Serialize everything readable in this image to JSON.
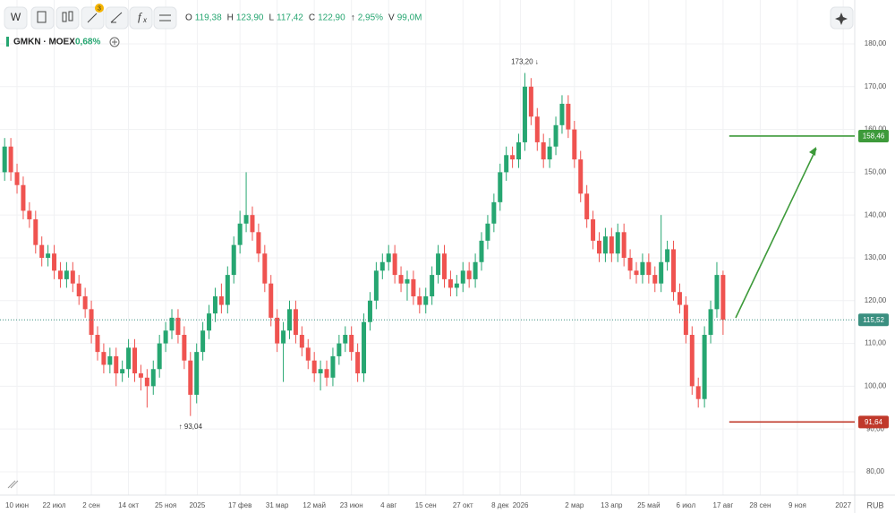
{
  "chart_data": {
    "type": "candlestick",
    "symbol": "GMKN · MOEX",
    "change": "0,68%",
    "toolbar": {
      "w": "W",
      "badge": "3",
      "fx": "f",
      "fx_sub": "x"
    },
    "ohlc_header": [
      {
        "key": "O",
        "text": "119,38"
      },
      {
        "key": "H",
        "text": "123,90"
      },
      {
        "key": "L",
        "text": "117,42"
      },
      {
        "key": "C",
        "text": "122,90"
      },
      {
        "key": "↑",
        "text": "2,95%"
      },
      {
        "key": "V",
        "text": "99,0M"
      }
    ],
    "currency": "RUB",
    "up_color": "#26a671",
    "down_color": "#ef5350",
    "xlim": [
      -2.75,
      135.26
    ],
    "ylim": [
      75.6,
      190.25
    ],
    "yticks": [
      {
        "value": 80,
        "label": "80,00"
      },
      {
        "value": 90,
        "label": "90,00"
      },
      {
        "value": 100,
        "label": "100,00"
      },
      {
        "value": 110,
        "label": "110,00"
      },
      {
        "value": 120,
        "label": "120,00"
      },
      {
        "value": 130,
        "label": "130,00"
      },
      {
        "value": 140,
        "label": "140,00"
      },
      {
        "value": 150,
        "label": "150,00"
      },
      {
        "value": 160,
        "label": "160,00"
      },
      {
        "value": 170,
        "label": "170,00"
      },
      {
        "value": 180,
        "label": "180,00"
      }
    ],
    "xticks": [
      {
        "value": 0,
        "label": "10 июн"
      },
      {
        "value": 6,
        "label": "22 июл"
      },
      {
        "value": 12,
        "label": "2 сен"
      },
      {
        "value": 18,
        "label": "14 окт"
      },
      {
        "value": 24,
        "label": "25 ноя"
      },
      {
        "value": 29.1,
        "label": "2025"
      },
      {
        "value": 36,
        "label": "17 фев"
      },
      {
        "value": 42,
        "label": "31 мар"
      },
      {
        "value": 48,
        "label": "12 май"
      },
      {
        "value": 54,
        "label": "23 июн"
      },
      {
        "value": 60,
        "label": "4 авг"
      },
      {
        "value": 66,
        "label": "15 сен"
      },
      {
        "value": 72,
        "label": "27 окт"
      },
      {
        "value": 78,
        "label": "8 дек"
      },
      {
        "value": 81.3,
        "label": "2026"
      },
      {
        "value": 90,
        "label": "2 мар"
      },
      {
        "value": 96,
        "label": "13 апр"
      },
      {
        "value": 102,
        "label": "25 май"
      },
      {
        "value": 108,
        "label": "6 июл"
      },
      {
        "value": 114,
        "label": "17 авг"
      },
      {
        "value": 120,
        "label": "28 сен"
      },
      {
        "value": 126,
        "label": "9 ноя"
      },
      {
        "value": 133.4,
        "label": "2027"
      }
    ],
    "x": [
      -2,
      -1,
      0,
      1,
      2,
      3,
      4,
      5,
      6,
      7,
      8,
      9,
      10,
      11,
      12,
      13,
      14,
      15,
      16,
      17,
      18,
      19,
      20,
      21,
      22,
      23,
      24,
      25,
      26,
      27,
      28,
      29,
      30,
      31,
      32,
      33,
      34,
      35,
      36,
      37,
      38,
      39,
      40,
      41,
      42,
      43,
      44,
      45,
      46,
      47,
      48,
      49,
      50,
      51,
      52,
      53,
      54,
      55,
      56,
      57,
      58,
      59,
      60,
      61,
      62,
      63,
      64,
      65,
      66,
      67,
      68,
      69,
      70,
      71,
      72,
      73,
      74,
      75,
      76,
      77,
      78,
      79,
      80,
      81,
      82,
      83,
      84,
      85,
      86,
      87,
      88,
      89,
      90,
      91,
      92,
      93,
      94,
      95,
      96,
      97,
      98,
      99,
      100,
      101,
      102,
      103,
      104,
      105,
      106,
      107,
      108,
      109,
      110,
      111,
      112,
      113,
      114
    ],
    "open": [
      150,
      156,
      150,
      147,
      141,
      139,
      133,
      130,
      131,
      127,
      125,
      127,
      124,
      121,
      118,
      112,
      108,
      105,
      107,
      103,
      104,
      109,
      103,
      102,
      100,
      104,
      110,
      113,
      116,
      112,
      106,
      98,
      108,
      113,
      117,
      121,
      119,
      126,
      133,
      138,
      140,
      136,
      131,
      124,
      116,
      110,
      113,
      118,
      112,
      109,
      106,
      103,
      104,
      102,
      107,
      110,
      112,
      108,
      103,
      115,
      120,
      127,
      129,
      131,
      126,
      124,
      125,
      121,
      119,
      121,
      126,
      131,
      125,
      123,
      124,
      127,
      125,
      129,
      134,
      138,
      143,
      150,
      154,
      153,
      157,
      170,
      163,
      157,
      153,
      156,
      161,
      166,
      160,
      153,
      145,
      139,
      134,
      131,
      135,
      131,
      136,
      130,
      127,
      126,
      129,
      126,
      124,
      129,
      132,
      122,
      119,
      112,
      100,
      97,
      112,
      118,
      126
    ],
    "high": [
      158,
      158,
      152,
      149,
      143,
      141,
      135,
      133,
      133,
      129,
      129,
      129,
      126,
      123,
      120,
      114,
      110,
      109,
      109,
      106,
      111,
      111,
      105,
      104,
      106,
      112,
      115,
      118,
      118,
      114,
      108,
      110,
      115,
      119,
      123,
      124,
      128,
      135,
      141,
      150,
      142,
      138,
      133,
      126,
      118,
      115,
      120,
      120,
      114,
      111,
      108,
      106,
      106,
      109,
      112,
      114,
      114,
      110,
      117,
      122,
      129,
      131,
      133,
      133,
      128,
      127,
      127,
      123,
      123,
      128,
      133,
      133,
      127,
      126,
      129,
      129,
      131,
      136,
      140,
      145,
      152,
      156,
      156,
      159,
      173.2,
      172,
      165,
      159,
      158,
      163,
      168,
      168,
      162,
      155,
      147,
      141,
      136,
      137,
      137,
      138,
      138,
      132,
      129,
      131,
      131,
      128,
      140,
      134,
      134,
      124,
      121,
      114,
      102,
      114,
      120,
      129,
      127
    ],
    "low": [
      148,
      148,
      145,
      139,
      137,
      131,
      128,
      128,
      125,
      123,
      123,
      122,
      119,
      116,
      110,
      106,
      103,
      103,
      100,
      101,
      102,
      101,
      99,
      95,
      98,
      102,
      108,
      111,
      110,
      104,
      93.04,
      96,
      106,
      111,
      115,
      117,
      117,
      124,
      131,
      136,
      134,
      129,
      122,
      114,
      108,
      101,
      111,
      110,
      107,
      104,
      101,
      99,
      100,
      100,
      105,
      108,
      106,
      101,
      101,
      113,
      118,
      125,
      127,
      124,
      122,
      120,
      119,
      117,
      117,
      119,
      124,
      123,
      121,
      121,
      122,
      123,
      123,
      127,
      132,
      136,
      141,
      148,
      151,
      151,
      155,
      161,
      155,
      151,
      151,
      154,
      159,
      158,
      151,
      143,
      137,
      132,
      129,
      129,
      129,
      129,
      128,
      125,
      124,
      124,
      124,
      122,
      122,
      127,
      120,
      117,
      110,
      98,
      95,
      95,
      110,
      116,
      112
    ],
    "close": [
      156,
      150,
      147,
      141,
      139,
      133,
      130,
      131,
      127,
      125,
      127,
      124,
      121,
      118,
      112,
      108,
      105,
      107,
      103,
      104,
      109,
      103,
      102,
      100,
      104,
      110,
      113,
      116,
      112,
      106,
      98,
      108,
      113,
      117,
      121,
      119,
      126,
      133,
      138,
      140,
      136,
      131,
      124,
      116,
      110,
      113,
      118,
      112,
      109,
      106,
      103,
      104,
      102,
      107,
      110,
      112,
      108,
      103,
      115,
      120,
      127,
      129,
      131,
      126,
      124,
      125,
      121,
      119,
      121,
      126,
      131,
      125,
      123,
      124,
      127,
      125,
      129,
      134,
      138,
      143,
      150,
      154,
      153,
      157,
      170,
      163,
      157,
      153,
      156,
      161,
      166,
      160,
      153,
      145,
      139,
      134,
      131,
      135,
      131,
      136,
      130,
      127,
      126,
      129,
      126,
      124,
      129,
      132,
      122,
      119,
      112,
      100,
      97,
      112,
      118,
      126,
      115.52
    ],
    "annotations": [
      {
        "x": 82,
        "value": 173.2,
        "label": "173,20 ↓",
        "side": "above"
      },
      {
        "x": 28,
        "value": 93.04,
        "label": "↑ 93,04",
        "side": "below"
      }
    ],
    "levels": [
      {
        "value": 115.52,
        "label": "115,52",
        "color": "#3a8f80",
        "style": "dotted",
        "from": -2.75
      },
      {
        "value": 158.46,
        "label": "158,46",
        "color": "#3d9a3a",
        "style": "solid",
        "from": 115
      },
      {
        "value": 91.64,
        "label": "91,64",
        "color": "#c0392b",
        "style": "solid",
        "from": 115
      }
    ]
  }
}
